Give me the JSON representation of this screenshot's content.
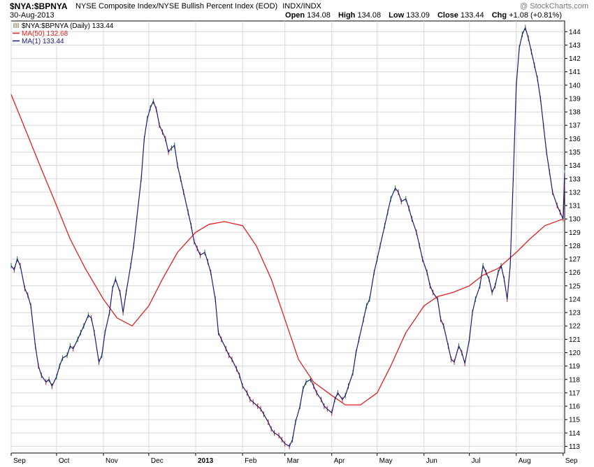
{
  "header": {
    "ticker": "$NYA:$BPNYA",
    "description": "NYSE Composite Index/NYSE Bullish Percent Index (EOD)",
    "exchange": "INDX/INDX",
    "watermark": "@ StockCharts.com",
    "date": "30-Aug-2013",
    "open_label": "Open",
    "open": "134.08",
    "high_label": "High",
    "high": "134.08",
    "low_label": "Low",
    "low": "133.09",
    "close_label": "Close",
    "close": "133.44",
    "chg_label": "Chg",
    "chg": "+1.08 (+0.81%)"
  },
  "legend": [
    {
      "text": "$NYA:$BPNYA (Daily) 133.44",
      "color": "#2a8a2a",
      "type": "bars"
    },
    {
      "text": "MA(50) 132.68",
      "color": "#e02020",
      "type": "line"
    },
    {
      "text": "MA(1) 133.44",
      "color": "#1a1a7a",
      "type": "line"
    }
  ],
  "colors": {
    "price": "#1a1a7a",
    "up_bar": "#1b8a1b",
    "down_bar": "#c81c1c",
    "ma50": "#e02020",
    "grid": "#d8d8d8",
    "axis": "#000000"
  },
  "chart_data": {
    "type": "line",
    "x_range": [
      "2012-09-01",
      "2013-09-02"
    ],
    "ylim": [
      112.5,
      144.8
    ],
    "y_ticks": [
      113,
      114,
      115,
      116,
      117,
      118,
      119,
      120,
      121,
      122,
      123,
      124,
      125,
      126,
      127,
      128,
      129,
      130,
      131,
      132,
      133,
      134,
      135,
      136,
      137,
      138,
      139,
      140,
      141,
      142,
      143,
      144
    ],
    "x_ticks": [
      {
        "label": "Sep",
        "date": "2012-09-01"
      },
      {
        "label": "Oct",
        "date": "2012-10-01"
      },
      {
        "label": "Nov",
        "date": "2012-11-01"
      },
      {
        "label": "Dec",
        "date": "2012-12-01"
      },
      {
        "label": "2013",
        "date": "2013-01-01"
      },
      {
        "label": "Feb",
        "date": "2013-02-01"
      },
      {
        "label": "Mar",
        "date": "2013-03-01"
      },
      {
        "label": "Apr",
        "date": "2013-04-01"
      },
      {
        "label": "May",
        "date": "2013-05-01"
      },
      {
        "label": "Jun",
        "date": "2013-06-01"
      },
      {
        "label": "Jul",
        "date": "2013-07-01"
      },
      {
        "label": "Aug",
        "date": "2013-08-01"
      },
      {
        "label": "Sep",
        "date": "2013-09-01"
      }
    ],
    "grid": true,
    "legend_position": "top-left",
    "series": [
      {
        "name": "MA(1)",
        "points": [
          [
            "2012-09-01",
            126.5
          ],
          [
            "2012-09-03",
            126.2
          ],
          [
            "2012-09-05",
            127.0
          ],
          [
            "2012-09-07",
            126.5
          ],
          [
            "2012-09-10",
            124.8
          ],
          [
            "2012-09-12",
            124.3
          ],
          [
            "2012-09-14",
            123.5
          ],
          [
            "2012-09-17",
            120.5
          ],
          [
            "2012-09-19",
            119.0
          ],
          [
            "2012-09-21",
            118.3
          ],
          [
            "2012-09-24",
            117.8
          ],
          [
            "2012-09-26",
            118.0
          ],
          [
            "2012-09-28",
            117.5
          ],
          [
            "2012-10-01",
            118.2
          ],
          [
            "2012-10-03",
            119.0
          ],
          [
            "2012-10-05",
            119.6
          ],
          [
            "2012-10-08",
            119.8
          ],
          [
            "2012-10-10",
            120.5
          ],
          [
            "2012-10-12",
            120.3
          ],
          [
            "2012-10-15",
            121.0
          ],
          [
            "2012-10-17",
            121.5
          ],
          [
            "2012-10-19",
            122.0
          ],
          [
            "2012-10-22",
            122.8
          ],
          [
            "2012-10-24",
            122.6
          ],
          [
            "2012-10-26",
            121.5
          ],
          [
            "2012-10-29",
            119.3
          ],
          [
            "2012-10-31",
            119.8
          ],
          [
            "2012-11-02",
            121.5
          ],
          [
            "2012-11-05",
            123.0
          ],
          [
            "2012-11-07",
            124.8
          ],
          [
            "2012-11-09",
            125.5
          ],
          [
            "2012-11-12",
            124.5
          ],
          [
            "2012-11-14",
            123.0
          ],
          [
            "2012-11-16",
            124.5
          ],
          [
            "2012-11-19",
            126.5
          ],
          [
            "2012-11-21",
            128.0
          ],
          [
            "2012-11-23",
            130.0
          ],
          [
            "2012-11-26",
            133.0
          ],
          [
            "2012-11-28",
            136.0
          ],
          [
            "2012-11-30",
            137.5
          ],
          [
            "2012-12-02",
            138.3
          ],
          [
            "2012-12-04",
            138.8
          ],
          [
            "2012-12-06",
            138.2
          ],
          [
            "2012-12-08",
            137.0
          ],
          [
            "2012-12-10",
            136.5
          ],
          [
            "2012-12-12",
            136.0
          ],
          [
            "2012-12-14",
            135.0
          ],
          [
            "2012-12-16",
            135.3
          ],
          [
            "2012-12-18",
            135.5
          ],
          [
            "2012-12-20",
            134.0
          ],
          [
            "2012-12-22",
            133.0
          ],
          [
            "2012-12-24",
            132.0
          ],
          [
            "2012-12-27",
            130.5
          ],
          [
            "2012-12-29",
            129.5
          ],
          [
            "2012-12-31",
            128.3
          ],
          [
            "2013-01-02",
            127.8
          ],
          [
            "2013-01-04",
            127.3
          ],
          [
            "2013-01-07",
            127.5
          ],
          [
            "2013-01-09",
            126.8
          ],
          [
            "2013-01-11",
            126.0
          ],
          [
            "2013-01-14",
            124.0
          ],
          [
            "2013-01-16",
            121.5
          ],
          [
            "2013-01-18",
            121.0
          ],
          [
            "2013-01-21",
            120.3
          ],
          [
            "2013-01-23",
            119.8
          ],
          [
            "2013-01-25",
            119.5
          ],
          [
            "2013-01-28",
            118.8
          ],
          [
            "2013-01-30",
            118.3
          ],
          [
            "2013-02-01",
            117.5
          ],
          [
            "2013-02-04",
            117.0
          ],
          [
            "2013-02-06",
            116.5
          ],
          [
            "2013-02-08",
            116.3
          ],
          [
            "2013-02-11",
            116.0
          ],
          [
            "2013-02-13",
            115.8
          ],
          [
            "2013-02-15",
            115.4
          ],
          [
            "2013-02-18",
            114.8
          ],
          [
            "2013-02-20",
            114.3
          ],
          [
            "2013-02-22",
            114.0
          ],
          [
            "2013-02-25",
            113.8
          ],
          [
            "2013-02-27",
            113.5
          ],
          [
            "2013-03-01",
            113.2
          ],
          [
            "2013-03-04",
            113.0
          ],
          [
            "2013-03-06",
            113.5
          ],
          [
            "2013-03-08",
            114.8
          ],
          [
            "2013-03-11",
            116.0
          ],
          [
            "2013-03-13",
            117.3
          ],
          [
            "2013-03-15",
            117.8
          ],
          [
            "2013-03-18",
            118.0
          ],
          [
            "2013-03-20",
            117.5
          ],
          [
            "2013-03-22",
            117.0
          ],
          [
            "2013-03-25",
            116.5
          ],
          [
            "2013-03-27",
            116.0
          ],
          [
            "2013-03-29",
            115.8
          ],
          [
            "2013-04-01",
            115.5
          ],
          [
            "2013-04-03",
            116.5
          ],
          [
            "2013-04-05",
            117.0
          ],
          [
            "2013-04-08",
            116.5
          ],
          [
            "2013-04-10",
            116.8
          ],
          [
            "2013-04-12",
            117.5
          ],
          [
            "2013-04-15",
            118.5
          ],
          [
            "2013-04-17",
            120.0
          ],
          [
            "2013-04-19",
            121.0
          ],
          [
            "2013-04-22",
            122.5
          ],
          [
            "2013-04-24",
            123.5
          ],
          [
            "2013-04-26",
            124.0
          ],
          [
            "2013-04-29",
            126.0
          ],
          [
            "2013-05-01",
            127.0
          ],
          [
            "2013-05-03",
            128.0
          ],
          [
            "2013-05-06",
            129.5
          ],
          [
            "2013-05-08",
            130.5
          ],
          [
            "2013-05-10",
            131.5
          ],
          [
            "2013-05-13",
            132.3
          ],
          [
            "2013-05-15",
            132.0
          ],
          [
            "2013-05-17",
            131.3
          ],
          [
            "2013-05-20",
            131.5
          ],
          [
            "2013-05-22",
            130.8
          ],
          [
            "2013-05-24",
            130.0
          ],
          [
            "2013-05-27",
            129.0
          ],
          [
            "2013-05-29",
            128.0
          ],
          [
            "2013-05-31",
            127.0
          ],
          [
            "2013-06-03",
            126.0
          ],
          [
            "2013-06-05",
            125.0
          ],
          [
            "2013-06-07",
            124.5
          ],
          [
            "2013-06-10",
            124.0
          ],
          [
            "2013-06-12",
            122.5
          ],
          [
            "2013-06-14",
            122.0
          ],
          [
            "2013-06-17",
            120.5
          ],
          [
            "2013-06-19",
            119.5
          ],
          [
            "2013-06-21",
            119.3
          ],
          [
            "2013-06-24",
            120.5
          ],
          [
            "2013-06-26",
            120.0
          ],
          [
            "2013-06-28",
            119.2
          ],
          [
            "2013-07-01",
            121.0
          ],
          [
            "2013-07-03",
            123.0
          ],
          [
            "2013-07-05",
            124.0
          ],
          [
            "2013-07-08",
            125.0
          ],
          [
            "2013-07-10",
            126.5
          ],
          [
            "2013-07-12",
            126.0
          ],
          [
            "2013-07-14",
            125.5
          ],
          [
            "2013-07-16",
            124.5
          ],
          [
            "2013-07-18",
            125.0
          ],
          [
            "2013-07-20",
            126.0
          ],
          [
            "2013-07-22",
            126.5
          ],
          [
            "2013-07-24",
            125.5
          ],
          [
            "2013-07-26",
            124.0
          ],
          [
            "2013-07-28",
            126.5
          ],
          [
            "2013-07-30",
            133.0
          ],
          [
            "2013-08-01",
            140.0
          ],
          [
            "2013-08-03",
            142.8
          ],
          [
            "2013-08-05",
            143.8
          ],
          [
            "2013-08-07",
            144.3
          ],
          [
            "2013-08-09",
            143.5
          ],
          [
            "2013-08-11",
            142.5
          ],
          [
            "2013-08-13",
            141.5
          ],
          [
            "2013-08-15",
            140.5
          ],
          [
            "2013-08-17",
            139.0
          ],
          [
            "2013-08-19",
            137.0
          ],
          [
            "2013-08-21",
            135.0
          ],
          [
            "2013-08-23",
            133.5
          ],
          [
            "2013-08-25",
            132.0
          ],
          [
            "2013-08-28",
            131.0
          ],
          [
            "2013-08-30",
            130.5
          ],
          [
            "2013-09-01",
            130.0
          ],
          [
            "2013-09-02",
            133.44
          ]
        ]
      },
      {
        "name": "MA(50)",
        "points": [
          [
            "2012-09-01",
            139.3
          ],
          [
            "2012-09-10",
            136.8
          ],
          [
            "2012-09-20",
            134.0
          ],
          [
            "2012-10-01",
            131.0
          ],
          [
            "2012-10-10",
            128.5
          ],
          [
            "2012-10-20",
            126.3
          ],
          [
            "2012-11-01",
            124.0
          ],
          [
            "2012-11-10",
            122.6
          ],
          [
            "2012-11-20",
            122.0
          ],
          [
            "2012-12-01",
            123.5
          ],
          [
            "2012-12-10",
            125.5
          ],
          [
            "2012-12-20",
            127.5
          ],
          [
            "2013-01-01",
            129.0
          ],
          [
            "2013-01-10",
            129.6
          ],
          [
            "2013-01-20",
            129.8
          ],
          [
            "2013-02-01",
            129.5
          ],
          [
            "2013-02-10",
            128.0
          ],
          [
            "2013-02-20",
            125.5
          ],
          [
            "2013-03-01",
            122.5
          ],
          [
            "2013-03-10",
            119.5
          ],
          [
            "2013-03-20",
            117.8
          ],
          [
            "2013-04-01",
            116.8
          ],
          [
            "2013-04-10",
            116.1
          ],
          [
            "2013-04-20",
            116.1
          ],
          [
            "2013-05-01",
            117.0
          ],
          [
            "2013-05-10",
            119.0
          ],
          [
            "2013-05-20",
            121.5
          ],
          [
            "2013-06-01",
            123.5
          ],
          [
            "2013-06-10",
            124.2
          ],
          [
            "2013-06-20",
            124.5
          ],
          [
            "2013-07-01",
            125.0
          ],
          [
            "2013-07-10",
            125.8
          ],
          [
            "2013-07-20",
            126.3
          ],
          [
            "2013-08-01",
            127.5
          ],
          [
            "2013-08-10",
            128.5
          ],
          [
            "2013-08-20",
            129.5
          ],
          [
            "2013-09-01",
            130.0
          ],
          [
            "2013-09-02",
            132.68
          ]
        ]
      }
    ]
  }
}
